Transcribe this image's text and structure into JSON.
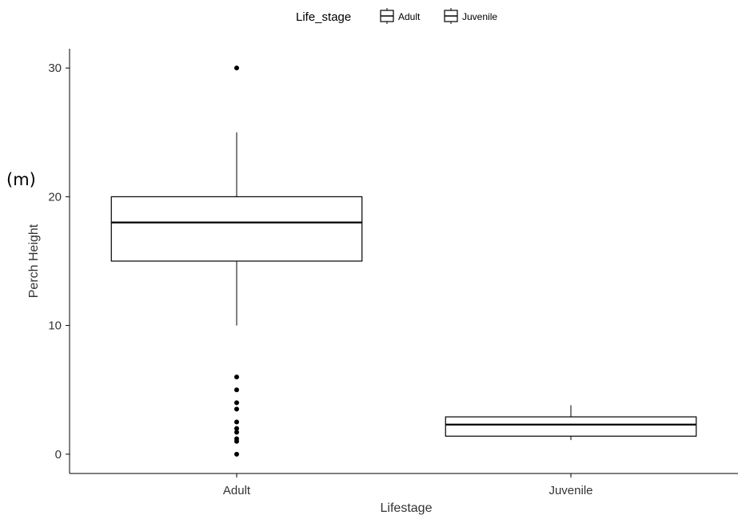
{
  "chart_data": {
    "type": "boxplot",
    "xlabel": "Lifestage",
    "ylabel": "Perch Height",
    "unit_label": "(m)",
    "ylim": [
      -1.5,
      31.5
    ],
    "yticks": [
      0,
      10,
      20,
      30
    ],
    "grid": false,
    "legend": {
      "title": "Life_stage",
      "position": "top",
      "entries": [
        "Adult",
        "Juvenile"
      ]
    },
    "categories": [
      "Adult",
      "Juvenile"
    ],
    "boxes": [
      {
        "category": "Adult",
        "whisker_low": 10,
        "q1": 15,
        "median": 18,
        "q3": 20,
        "whisker_high": 25,
        "outliers": [
          30,
          6,
          5,
          4,
          3.5,
          2.5,
          2,
          1.7,
          1.2,
          1,
          0
        ]
      },
      {
        "category": "Juvenile",
        "whisker_low": 1.1,
        "q1": 1.4,
        "median": 2.3,
        "q3": 2.9,
        "whisker_high": 3.8,
        "outliers": []
      }
    ],
    "colors": {
      "box_fill": "#ffffff",
      "box_line": "#000000",
      "point": "#000000"
    }
  }
}
